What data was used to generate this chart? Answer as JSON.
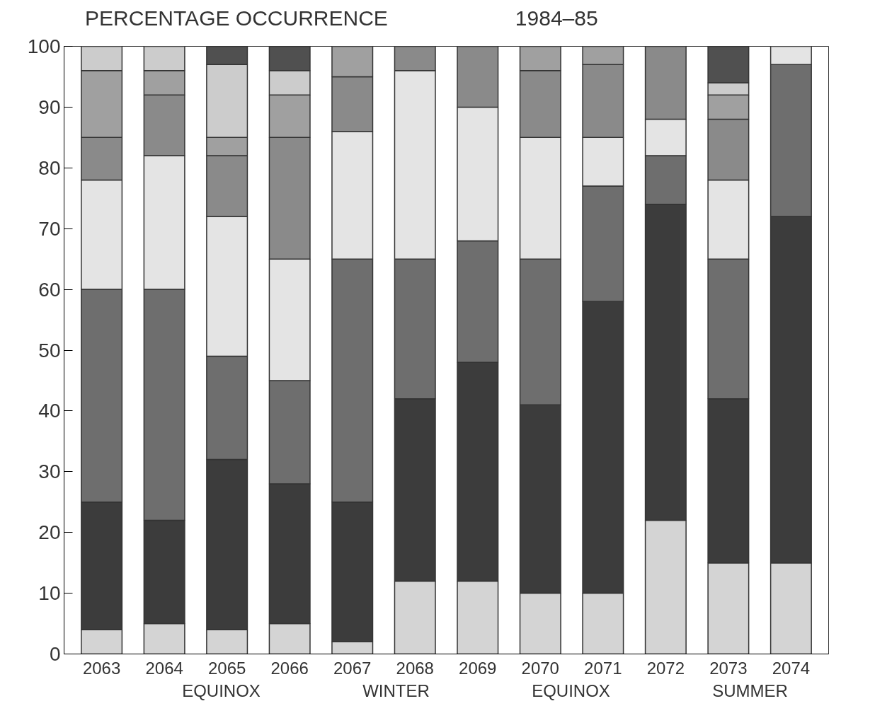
{
  "chart_data": {
    "type": "bar",
    "stacked": true,
    "title": "PERCENTAGE OCCURRENCE",
    "subtitle": "1984–85",
    "categories": [
      "2063",
      "2064",
      "2065",
      "2066",
      "2067",
      "2068",
      "2069",
      "2070",
      "2071",
      "2072",
      "2073",
      "2074"
    ],
    "series": [
      {
        "color": "#d4d4d4",
        "values": [
          4,
          5,
          4,
          5,
          2,
          12,
          12,
          10,
          10,
          22,
          15,
          15
        ]
      },
      {
        "color": "#3c3c3c",
        "values": [
          21,
          17,
          28,
          23,
          23,
          30,
          36,
          31,
          48,
          52,
          27,
          57
        ]
      },
      {
        "color": "#6e6e6e",
        "values": [
          35,
          38,
          17,
          17,
          40,
          23,
          20,
          24,
          19,
          8,
          23,
          25
        ]
      },
      {
        "color": "#e4e4e4",
        "values": [
          18,
          22,
          23,
          20,
          21,
          31,
          22,
          20,
          8,
          6,
          13,
          3
        ]
      },
      {
        "color": "#8a8a8a",
        "values": [
          7,
          10,
          10,
          20,
          9,
          4,
          10,
          11,
          12,
          12,
          10,
          0
        ]
      },
      {
        "color": "#a0a0a0",
        "values": [
          11,
          4,
          3,
          7,
          5,
          0,
          0,
          4,
          3,
          0,
          4,
          0
        ]
      },
      {
        "color": "#cccccc",
        "values": [
          4,
          4,
          12,
          4,
          0,
          0,
          0,
          0,
          0,
          0,
          2,
          0
        ]
      },
      {
        "color": "#505050",
        "values": [
          0,
          0,
          3,
          4,
          0,
          0,
          0,
          0,
          0,
          0,
          6,
          0
        ]
      }
    ],
    "ylim": [
      0,
      100
    ],
    "yticks": [
      0,
      10,
      20,
      30,
      40,
      50,
      60,
      70,
      80,
      90,
      100
    ],
    "annotations": [
      "EQUINOX",
      "WINTER",
      "EQUINOX",
      "SUMMER"
    ]
  }
}
